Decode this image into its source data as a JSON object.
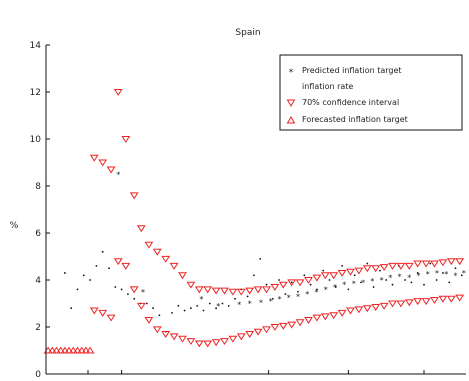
{
  "chart_data": {
    "type": "scatter",
    "title": "Spain",
    "xlabel": "",
    "ylabel": "%",
    "ylim": [
      0,
      14
    ],
    "xlim": [
      0,
      100
    ],
    "yticks": [
      0,
      2,
      4,
      6,
      8,
      10,
      12,
      14
    ],
    "ytick_labels": [
      "0",
      "2",
      "4",
      "6",
      "8",
      "10",
      "12",
      "14"
    ],
    "xticks": [
      10,
      18,
      53,
      72,
      90
    ],
    "legend": {
      "placement": "top-right",
      "entries": [
        "Predicted inflation target",
        "inflation rate",
        "70% confidence interval",
        "Forecasted inflation target"
      ]
    },
    "series": [
      {
        "name": "Predicted inflation target",
        "marker": "star",
        "color": "#00cc44",
        "x": [
          17.2,
          23.1,
          37,
          41,
          46,
          48.5,
          51.2,
          53.5,
          55.6,
          57.8,
          60,
          62.2,
          64.4,
          66.6,
          68.8,
          71,
          73.3,
          75.5,
          77.7,
          79.9,
          82,
          84.2,
          86.5,
          88.7,
          90.9,
          93.1,
          95.3,
          97.5,
          99.5
        ],
        "values": [
          8.5,
          3.5,
          3.2,
          2.9,
          2.95,
          3.0,
          3.05,
          3.1,
          3.2,
          3.25,
          3.3,
          3.4,
          3.5,
          3.6,
          3.7,
          3.8,
          3.85,
          3.9,
          3.95,
          4.0,
          4.1,
          4.15,
          4.1,
          4.2,
          4.25,
          4.3,
          4.25,
          4.2,
          4.3
        ]
      },
      {
        "name": "inflation rate",
        "marker": "dot",
        "color": "#111111",
        "x": [
          4.5,
          6,
          7.5,
          9,
          10.5,
          12,
          13.5,
          15,
          16.5,
          18,
          19.5,
          21,
          22.5,
          24,
          25.5,
          27,
          28.5,
          30,
          31.5,
          33,
          34.5,
          36,
          37.5,
          39,
          40.5,
          42,
          43.5,
          45,
          46.5,
          48,
          49.5,
          51,
          52.5,
          54,
          55.5,
          57,
          58.5,
          60,
          61.5,
          63,
          64.5,
          66,
          67.5,
          69,
          70.5,
          72,
          73.5,
          75,
          76.5,
          78,
          79.5,
          81,
          82.5,
          84,
          85.5,
          87,
          88.5,
          90,
          91.5,
          93,
          94.5,
          96,
          97.5,
          99
        ],
        "values": [
          4.3,
          2.8,
          3.6,
          4.2,
          4.0,
          4.6,
          5.2,
          4.5,
          3.7,
          3.6,
          3.4,
          3.2,
          3.0,
          3.0,
          2.8,
          2.5,
          1.8,
          2.6,
          2.9,
          2.7,
          2.8,
          2.9,
          2.7,
          3.0,
          2.8,
          3.0,
          2.9,
          3.2,
          3.6,
          3.3,
          4.2,
          4.9,
          3.8,
          3.2,
          4.0,
          3.4,
          3.9,
          3.5,
          4.2,
          3.8,
          3.6,
          4.4,
          4.0,
          3.7,
          4.6,
          3.6,
          4.2,
          3.9,
          4.7,
          3.7,
          4.4,
          4.0,
          3.8,
          4.6,
          4.0,
          3.9,
          4.3,
          3.8,
          4.7,
          4.0,
          4.3,
          3.9,
          4.5,
          4.2
        ]
      },
      {
        "name": "70% confidence interval",
        "marker": "triangle-down",
        "color": "#ee2222",
        "x": [
          11.5,
          13.5,
          15.5,
          17.2,
          19,
          21,
          22.7,
          24.5,
          26.5,
          28.5,
          30.5,
          32.5,
          34.5,
          36.5,
          38.5,
          40.5,
          42.5,
          44.5,
          46.5,
          48.5,
          50.5,
          52.5,
          54.5,
          56.5,
          58.5,
          60.5,
          62.5,
          64.5,
          66.5,
          68.5,
          70.5,
          72.5,
          74.5,
          76.5,
          78.5,
          80.5,
          82.5,
          84.5,
          86.5,
          88.5,
          90.5,
          92.5,
          94.5,
          96.5,
          98.5,
          11.5,
          13.5,
          15.5,
          17.2,
          19,
          21,
          22.7,
          24.5,
          26.5,
          28.5,
          30.5,
          32.5,
          34.5,
          36.5,
          38.5,
          40.5,
          42.5,
          44.5,
          46.5,
          48.5,
          50.5,
          52.5,
          54.5,
          56.5,
          58.5,
          60.5,
          62.5,
          64.5,
          66.5,
          68.5,
          70.5,
          72.5,
          74.5,
          76.5,
          78.5,
          80.5,
          82.5,
          84.5,
          86.5,
          88.5,
          90.5,
          92.5,
          94.5,
          96.5,
          98.5
        ],
        "values": [
          9.2,
          9.0,
          8.7,
          12.0,
          10.0,
          7.6,
          6.2,
          5.5,
          5.2,
          4.9,
          4.6,
          4.2,
          3.8,
          3.6,
          3.6,
          3.55,
          3.55,
          3.5,
          3.5,
          3.55,
          3.6,
          3.6,
          3.7,
          3.8,
          3.9,
          3.9,
          4.0,
          4.1,
          4.2,
          4.2,
          4.3,
          4.35,
          4.4,
          4.5,
          4.5,
          4.55,
          4.6,
          4.6,
          4.6,
          4.7,
          4.7,
          4.7,
          4.75,
          4.8,
          4.8,
          2.7,
          2.6,
          2.4,
          4.8,
          4.6,
          3.6,
          2.9,
          2.3,
          1.9,
          1.7,
          1.6,
          1.5,
          1.4,
          1.3,
          1.3,
          1.35,
          1.4,
          1.5,
          1.6,
          1.7,
          1.8,
          1.9,
          2.0,
          2.05,
          2.1,
          2.2,
          2.3,
          2.4,
          2.45,
          2.5,
          2.6,
          2.7,
          2.75,
          2.8,
          2.85,
          2.9,
          3.0,
          3.0,
          3.05,
          3.1,
          3.1,
          3.15,
          3.2,
          3.2,
          3.25
        ]
      },
      {
        "name": "Forecasted inflation target",
        "marker": "triangle-up",
        "color": "#ee2222",
        "x": [
          0.5,
          1.5,
          2.5,
          3.5,
          4.5,
          5.5,
          6.5,
          7.5,
          8.5,
          9.5,
          10.5
        ],
        "values": [
          1.0,
          1.0,
          1.0,
          1.0,
          1.0,
          1.0,
          1.0,
          1.0,
          1.0,
          1.0,
          1.0
        ]
      }
    ]
  },
  "colors": {
    "axis": "#111111",
    "background": "#ffffff"
  }
}
